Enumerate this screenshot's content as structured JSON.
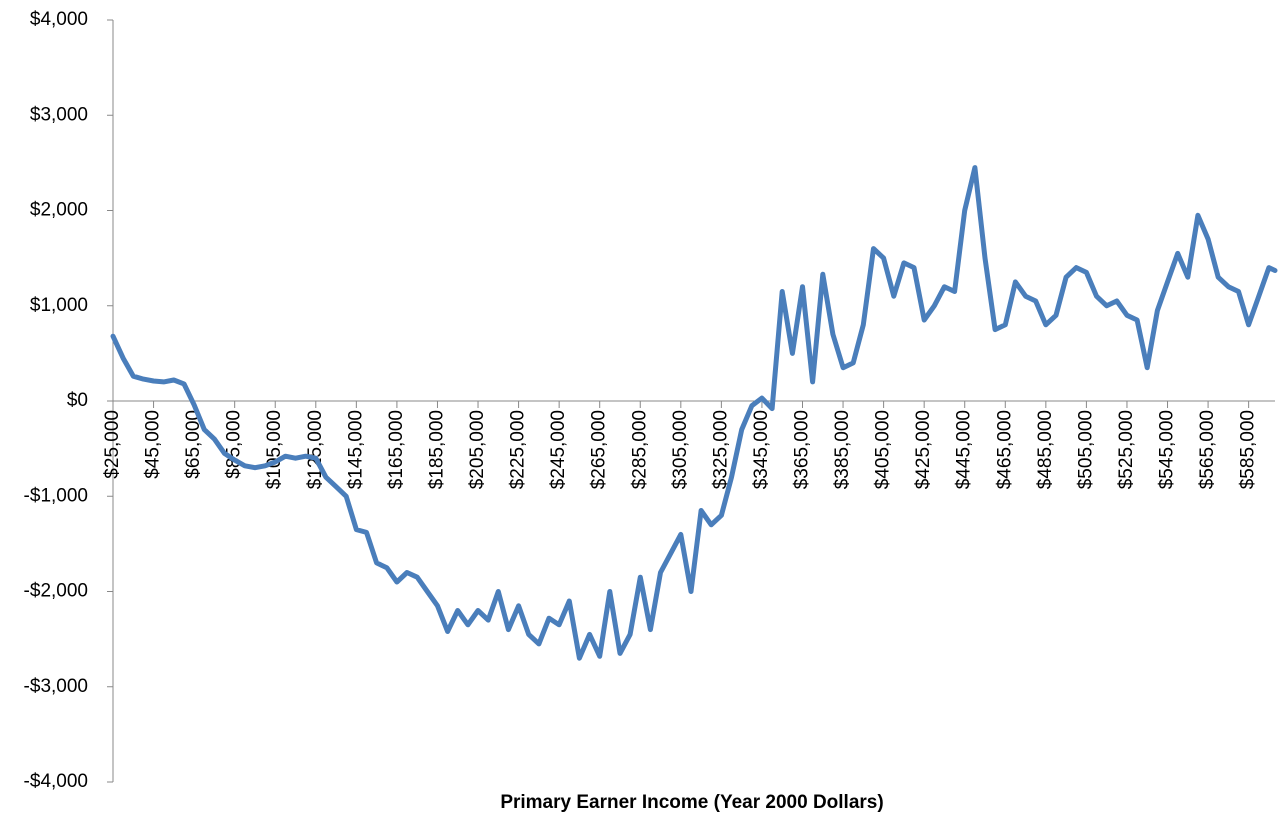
{
  "chart_data": {
    "type": "line",
    "xlabel": "Primary Earner Income  (Year 2000 Dollars)",
    "x": [
      25000,
      30000,
      35000,
      40000,
      45000,
      50000,
      55000,
      60000,
      65000,
      70000,
      75000,
      80000,
      85000,
      90000,
      95000,
      100000,
      105000,
      110000,
      115000,
      120000,
      125000,
      130000,
      135000,
      140000,
      145000,
      150000,
      155000,
      160000,
      165000,
      170000,
      175000,
      180000,
      185000,
      190000,
      195000,
      200000,
      205000,
      210000,
      215000,
      220000,
      225000,
      230000,
      235000,
      240000,
      245000,
      250000,
      255000,
      260000,
      265000,
      270000,
      275000,
      280000,
      285000,
      290000,
      295000,
      300000,
      305000,
      310000,
      315000,
      320000,
      325000,
      330000,
      335000,
      340000,
      345000,
      350000,
      355000,
      360000,
      365000,
      370000,
      375000,
      380000,
      385000,
      390000,
      395000,
      400000,
      405000,
      410000,
      415000,
      420000,
      425000,
      430000,
      435000,
      440000,
      445000,
      450000,
      455000,
      460000,
      465000,
      470000,
      475000,
      480000,
      485000,
      490000,
      495000,
      500000,
      505000,
      510000,
      515000,
      520000,
      525000,
      530000,
      535000,
      540000,
      545000,
      550000,
      555000,
      560000,
      565000,
      570000,
      575000,
      580000,
      585000,
      590000,
      595000,
      598000
    ],
    "series": [
      {
        "color": "#4a7ebb",
        "values": [
          680,
          450,
          260,
          230,
          210,
          200,
          220,
          180,
          -40,
          -300,
          -400,
          -550,
          -620,
          -680,
          -700,
          -680,
          -640,
          -580,
          -600,
          -580,
          -600,
          -800,
          -900,
          -1000,
          -1350,
          -1380,
          -1700,
          -1750,
          -1900,
          -1800,
          -1850,
          -2000,
          -2150,
          -2420,
          -2200,
          -2350,
          -2200,
          -2300,
          -2000,
          -2400,
          -2150,
          -2450,
          -2550,
          -2280,
          -2350,
          -2100,
          -2700,
          -2450,
          -2680,
          -2000,
          -2650,
          -2450,
          -1850,
          -2400,
          -1800,
          -1600,
          -1400,
          -2000,
          -1150,
          -1300,
          -1200,
          -800,
          -300,
          -50,
          30,
          -80,
          1150,
          500,
          1200,
          200,
          1330,
          700,
          350,
          400,
          800,
          1600,
          1500,
          1100,
          1450,
          1400,
          850,
          1000,
          1200,
          1150,
          2000,
          2450,
          1500,
          750,
          800,
          1250,
          1100,
          1050,
          800,
          900,
          1300,
          1400,
          1350,
          1100,
          1000,
          1050,
          900,
          850,
          350,
          950,
          1250,
          1550,
          1300,
          1950,
          1700,
          1300,
          1200,
          1150,
          800,
          1100,
          1400,
          1370
        ]
      }
    ],
    "xlim": [
      25000,
      598000
    ],
    "xticks": [
      {
        "value": 25000,
        "label": "$25,000"
      },
      {
        "value": 45000,
        "label": "$45,000"
      },
      {
        "value": 65000,
        "label": "$65,000"
      },
      {
        "value": 85000,
        "label": "$85,000"
      },
      {
        "value": 105000,
        "label": "$105,000"
      },
      {
        "value": 125000,
        "label": "$125,000"
      },
      {
        "value": 145000,
        "label": "$145,000"
      },
      {
        "value": 165000,
        "label": "$165,000"
      },
      {
        "value": 185000,
        "label": "$185,000"
      },
      {
        "value": 205000,
        "label": "$205,000"
      },
      {
        "value": 225000,
        "label": "$225,000"
      },
      {
        "value": 245000,
        "label": "$245,000"
      },
      {
        "value": 265000,
        "label": "$265,000"
      },
      {
        "value": 285000,
        "label": "$285,000"
      },
      {
        "value": 305000,
        "label": "$305,000"
      },
      {
        "value": 325000,
        "label": "$325,000"
      },
      {
        "value": 345000,
        "label": "$345,000"
      },
      {
        "value": 365000,
        "label": "$365,000"
      },
      {
        "value": 385000,
        "label": "$385,000"
      },
      {
        "value": 405000,
        "label": "$405,000"
      },
      {
        "value": 425000,
        "label": "$425,000"
      },
      {
        "value": 445000,
        "label": "$445,000"
      },
      {
        "value": 465000,
        "label": "$465,000"
      },
      {
        "value": 485000,
        "label": "$485,000"
      },
      {
        "value": 505000,
        "label": "$505,000"
      },
      {
        "value": 525000,
        "label": "$525,000"
      },
      {
        "value": 545000,
        "label": "$545,000"
      },
      {
        "value": 565000,
        "label": "$565,000"
      },
      {
        "value": 585000,
        "label": "$585,000"
      }
    ],
    "ylim": [
      -4000,
      4000
    ],
    "yticks": [
      {
        "value": 4000,
        "label": "$4,000"
      },
      {
        "value": 3000,
        "label": "$3,000"
      },
      {
        "value": 2000,
        "label": "$2,000"
      },
      {
        "value": 1000,
        "label": "$1,000"
      },
      {
        "value": 0,
        "label": "$0"
      },
      {
        "value": -1000,
        "label": "-$1,000"
      },
      {
        "value": -2000,
        "label": "-$2,000"
      },
      {
        "value": -3000,
        "label": "-$3,000"
      },
      {
        "value": -4000,
        "label": "-$4,000"
      }
    ],
    "grid": false
  }
}
